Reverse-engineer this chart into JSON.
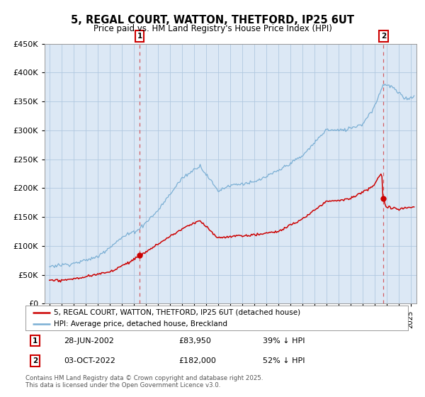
{
  "title": "5, REGAL COURT, WATTON, THETFORD, IP25 6UT",
  "subtitle": "Price paid vs. HM Land Registry's House Price Index (HPI)",
  "legend_label_red": "5, REGAL COURT, WATTON, THETFORD, IP25 6UT (detached house)",
  "legend_label_blue": "HPI: Average price, detached house, Breckland",
  "sale1_date": "28-JUN-2002",
  "sale1_price": 83950,
  "sale1_hpi": "39% ↓ HPI",
  "sale2_date": "03-OCT-2022",
  "sale2_price": 182000,
  "sale2_hpi": "52% ↓ HPI",
  "footer": "Contains HM Land Registry data © Crown copyright and database right 2025.\nThis data is licensed under the Open Government Licence v3.0.",
  "red_color": "#cc0000",
  "blue_color": "#7bafd4",
  "background_color": "#ffffff",
  "chart_bg_color": "#dce8f5",
  "grid_color": "#b0c8e0"
}
